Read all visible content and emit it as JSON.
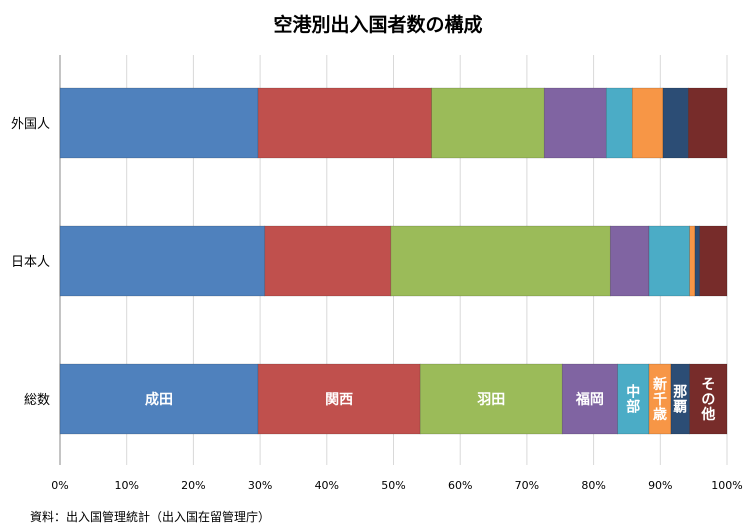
{
  "source_note": "資料：出入国管理統計（出入国在留管理庁）",
  "chart_data": {
    "type": "bar",
    "orientation": "horizontal",
    "stacked": true,
    "percent": true,
    "title": "空港別出入国者数の構成",
    "xlabel": "",
    "ylabel": "",
    "categories": [
      "外国人",
      "日本人",
      "総数"
    ],
    "x_ticks": [
      "0%",
      "10%",
      "20%",
      "30%",
      "40%",
      "50%",
      "60%",
      "70%",
      "80%",
      "90%",
      "100%"
    ],
    "xlim": [
      0,
      100
    ],
    "grid": true,
    "legend": "none",
    "segment_labels_on": "総数",
    "series": [
      {
        "name": "成田",
        "color": "#4f81bd",
        "values": [
          29.7,
          30.7,
          29.7
        ]
      },
      {
        "name": "関西",
        "color": "#c0504d",
        "values": [
          26.0,
          18.9,
          24.3
        ]
      },
      {
        "name": "羽田",
        "color": "#9bbb59",
        "values": [
          16.9,
          32.9,
          21.3
        ]
      },
      {
        "name": "福岡",
        "color": "#8064a2",
        "values": [
          9.3,
          5.8,
          8.3
        ]
      },
      {
        "name": "中部",
        "color": "#4bacc6",
        "values": [
          3.9,
          6.1,
          4.7
        ]
      },
      {
        "name": "新千歳",
        "color": "#f79646",
        "values": [
          4.6,
          0.8,
          3.3
        ]
      },
      {
        "name": "那覇",
        "color": "#2c4d75",
        "values": [
          3.8,
          0.7,
          2.8
        ]
      },
      {
        "name": "その他",
        "color": "#772c2a",
        "values": [
          5.8,
          4.1,
          5.6
        ]
      }
    ]
  }
}
